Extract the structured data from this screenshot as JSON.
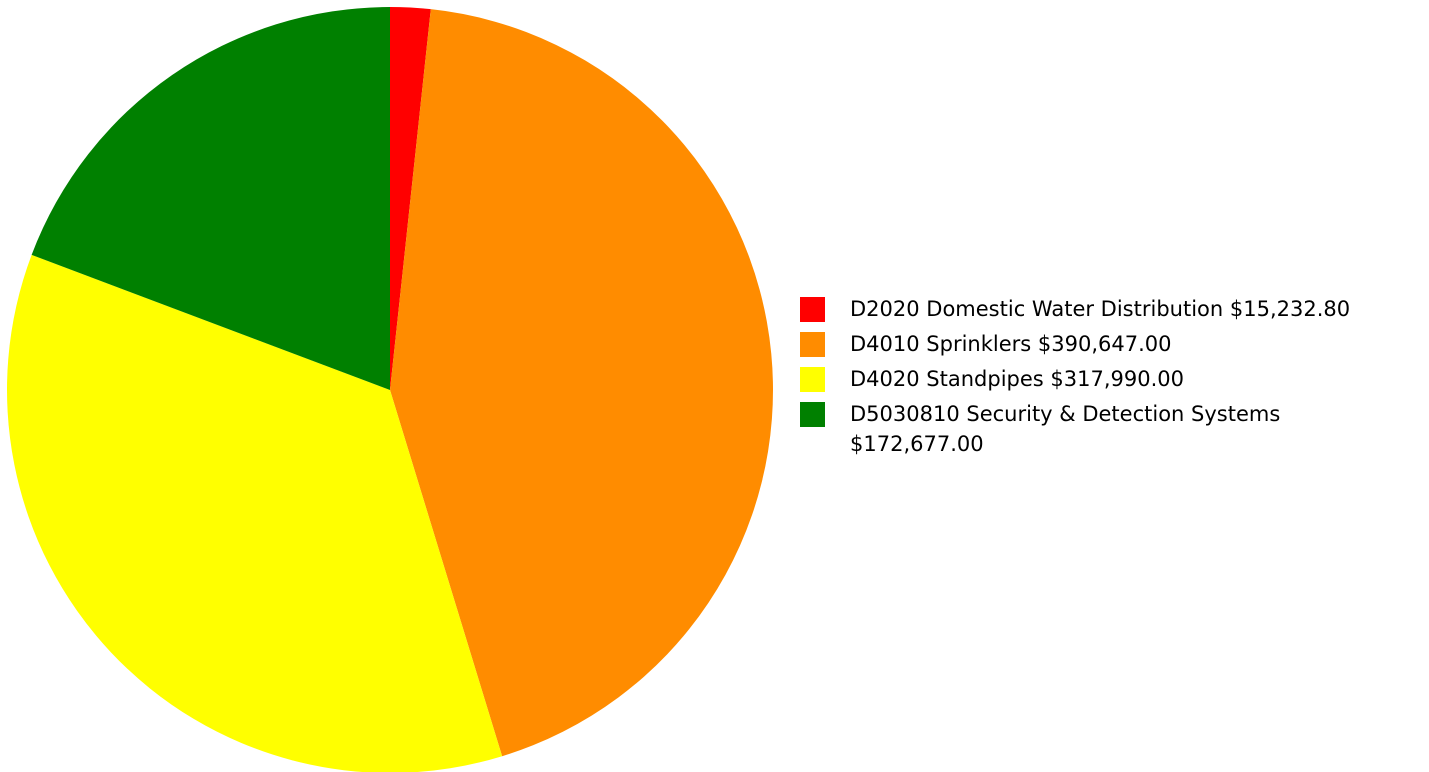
{
  "chart_data": {
    "type": "pie",
    "start_angle": "top (12 o'clock), clockwise",
    "legend_placement": "right",
    "slices": [
      {
        "label": "D2020 Domestic Water Distribution",
        "amount": "$15,232.80",
        "value": 15232.8,
        "color": "#FF0000"
      },
      {
        "label": "D4010 Sprinklers",
        "amount": "$390,647.00",
        "value": 390647.0,
        "color": "#FF8C00"
      },
      {
        "label": "D4020 Standpipes",
        "amount": "$317,990.00",
        "value": 317990.0,
        "color": "#FFFF00"
      },
      {
        "label": "D5030810 Security & Detection Systems",
        "amount": "$172,677.00",
        "value": 172677.0,
        "color": "#008000"
      }
    ]
  }
}
